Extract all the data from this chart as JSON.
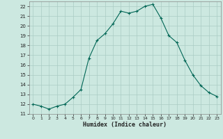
{
  "title": "",
  "xlabel": "Humidex (Indice chaleur)",
  "ylabel": "",
  "background_color": "#cce8e0",
  "grid_color": "#aaccc4",
  "line_color": "#006655",
  "marker_color": "#006655",
  "x": [
    0,
    1,
    2,
    3,
    4,
    5,
    6,
    7,
    8,
    9,
    10,
    11,
    12,
    13,
    14,
    15,
    16,
    17,
    18,
    19,
    20,
    21,
    22,
    23
  ],
  "y": [
    12.0,
    11.8,
    11.5,
    11.8,
    12.0,
    12.7,
    13.5,
    16.7,
    18.5,
    19.2,
    20.2,
    21.5,
    21.3,
    21.5,
    22.0,
    22.2,
    20.8,
    19.0,
    18.3,
    16.5,
    15.0,
    13.9,
    13.2,
    12.8
  ],
  "ylim": [
    11,
    22.5
  ],
  "xlim": [
    -0.5,
    23.5
  ],
  "yticks": [
    11,
    12,
    13,
    14,
    15,
    16,
    17,
    18,
    19,
    20,
    21,
    22
  ],
  "xticks": [
    0,
    1,
    2,
    3,
    4,
    5,
    6,
    7,
    8,
    9,
    10,
    11,
    12,
    13,
    14,
    15,
    16,
    17,
    18,
    19,
    20,
    21,
    22,
    23
  ]
}
